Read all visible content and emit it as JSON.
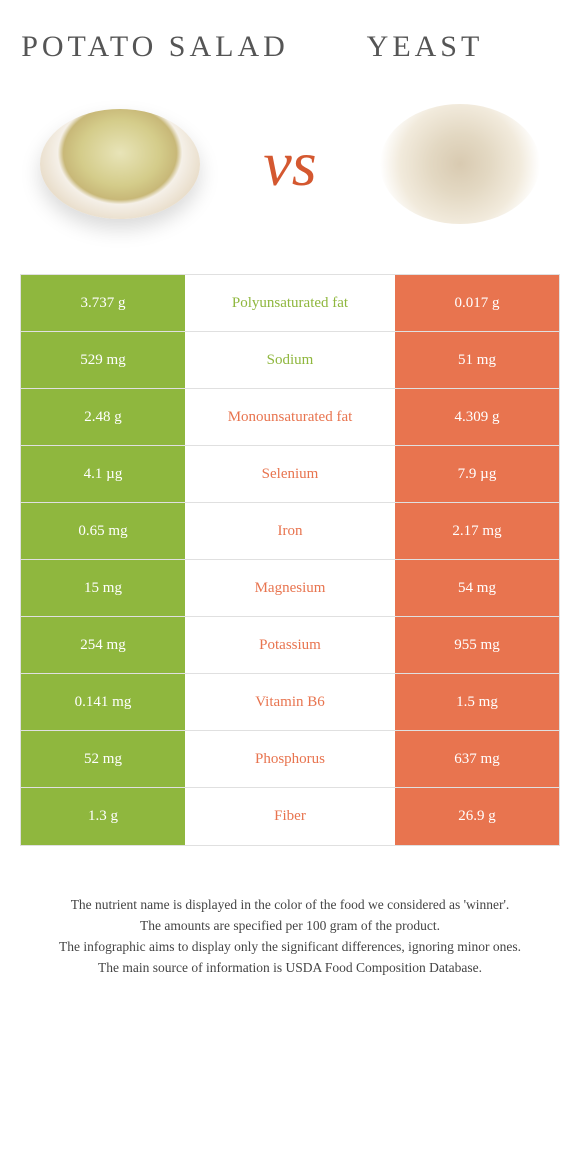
{
  "left_food": {
    "name": "POTATO SALAD",
    "color": "#8fb73e"
  },
  "right_food": {
    "name": "YEAST",
    "color": "#e8744f"
  },
  "vs_label": "vs",
  "vs_color": "#d45830",
  "label_colors": {
    "left": "#8fb73e",
    "right": "#e8744f"
  },
  "rows": [
    {
      "left": "3.737 g",
      "label": "Polyunsaturated fat",
      "label_side": "left",
      "right": "0.017 g"
    },
    {
      "left": "529 mg",
      "label": "Sodium",
      "label_side": "left",
      "right": "51 mg"
    },
    {
      "left": "2.48 g",
      "label": "Monounsaturated fat",
      "label_side": "right",
      "right": "4.309 g"
    },
    {
      "left": "4.1 µg",
      "label": "Selenium",
      "label_side": "right",
      "right": "7.9 µg"
    },
    {
      "left": "0.65 mg",
      "label": "Iron",
      "label_side": "right",
      "right": "2.17 mg"
    },
    {
      "left": "15 mg",
      "label": "Magnesium",
      "label_side": "right",
      "right": "54 mg"
    },
    {
      "left": "254 mg",
      "label": "Potassium",
      "label_side": "right",
      "right": "955 mg"
    },
    {
      "left": "0.141 mg",
      "label": "Vitamin B6",
      "label_side": "right",
      "right": "1.5 mg"
    },
    {
      "left": "52 mg",
      "label": "Phosphorus",
      "label_side": "right",
      "right": "637 mg"
    },
    {
      "left": "1.3 g",
      "label": "Fiber",
      "label_side": "right",
      "right": "26.9 g"
    }
  ],
  "footnotes": [
    "The nutrient name is displayed in the color of the food we considered as 'winner'.",
    "The amounts are specified per 100 gram of the product.",
    "The infographic aims to display only the significant differences, ignoring minor ones.",
    "The main source of information is USDA Food Composition Database."
  ]
}
